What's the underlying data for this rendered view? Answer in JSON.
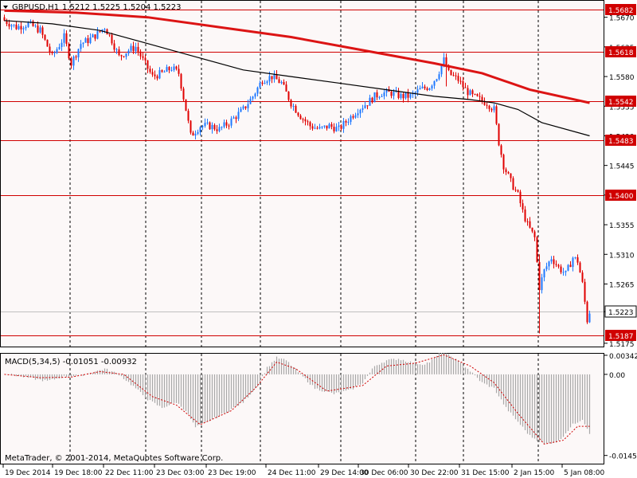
{
  "header": {
    "symbol_label": "GBPUSD,H1",
    "ohlc_label": "1.5212 1.5225 1.5204 1.5223"
  },
  "indicator": {
    "label": "MACD(5,34,5) -0.01051 -0.00932"
  },
  "footer": {
    "copyright": "MetaTrader, © 2001-2014, MetaQuotes Software Corp."
  },
  "colors": {
    "background": "#fcf8f8",
    "bull_candle": "#1e78ff",
    "bear_candle": "#e00000",
    "level_line": "#d00000",
    "slow_ma": "#dc1414",
    "fast_ma": "#000000",
    "macd_hist": "#a8a8a8",
    "macd_signal": "#d00000",
    "current_price_line": "#c0c0c0"
  },
  "chart_data": [
    {
      "type": "candlestick",
      "title": "GBPUSD,H1",
      "ylim": [
        1.517,
        1.5695
      ],
      "price_ticks": [
        "1.5670",
        "1.5625",
        "1.5580",
        "1.5535",
        "1.5490",
        "1.5445",
        "1.5400",
        "1.5355",
        "1.5310",
        "1.5265",
        "1.5223",
        "1.5175"
      ],
      "time_labels": [
        "19 Dec 2014",
        "19 Dec 18:00",
        "22 Dec 11:00",
        "23 Dec 03:00",
        "23 Dec 19:00",
        "24 Dec 11:00",
        "29 Dec 14:00",
        "30 Dec 06:00",
        "30 Dec 22:00",
        "31 Dec 15:00",
        "2 Jan 15:00",
        "5 Jan 08:00"
      ],
      "levels": [
        {
          "label": "1.5682",
          "value": 1.5682
        },
        {
          "label": "1.5618",
          "value": 1.5618
        },
        {
          "label": "1.5542",
          "value": 1.5542
        },
        {
          "label": "1.5483",
          "value": 1.5483
        },
        {
          "label": "1.5400",
          "value": 1.54
        },
        {
          "label": "1.5187",
          "value": 1.5187
        }
      ],
      "current_price": {
        "label": "1.5223",
        "value": 1.5223
      },
      "close_path": [
        [
          0,
          1.5665
        ],
        [
          5,
          1.5655
        ],
        [
          10,
          1.566
        ],
        [
          15,
          1.565
        ],
        [
          20,
          1.561
        ],
        [
          25,
          1.564
        ],
        [
          28,
          1.56
        ],
        [
          32,
          1.563
        ],
        [
          35,
          1.5635
        ],
        [
          39,
          1.5645
        ],
        [
          42,
          1.5655
        ],
        [
          45,
          1.5635
        ],
        [
          48,
          1.561
        ],
        [
          52,
          1.562
        ],
        [
          55,
          1.5625
        ],
        [
          58,
          1.5605
        ],
        [
          62,
          1.558
        ],
        [
          66,
          1.5585
        ],
        [
          70,
          1.5593
        ],
        [
          73,
          1.5585
        ],
        [
          76,
          1.553
        ],
        [
          78,
          1.549
        ],
        [
          82,
          1.5505
        ],
        [
          86,
          1.5505
        ],
        [
          90,
          1.55
        ],
        [
          94,
          1.551
        ],
        [
          97,
          1.552
        ],
        [
          100,
          1.553
        ],
        [
          104,
          1.555
        ],
        [
          108,
          1.5575
        ],
        [
          112,
          1.558
        ],
        [
          116,
          1.557
        ],
        [
          120,
          1.554
        ],
        [
          124,
          1.552
        ],
        [
          128,
          1.5505
        ],
        [
          132,
          1.55
        ],
        [
          136,
          1.5505
        ],
        [
          140,
          1.55
        ],
        [
          144,
          1.5515
        ],
        [
          148,
          1.553
        ],
        [
          152,
          1.554
        ],
        [
          155,
          1.555
        ],
        [
          158,
          1.5555
        ],
        [
          162,
          1.5555
        ],
        [
          166,
          1.555
        ],
        [
          170,
          1.555
        ],
        [
          174,
          1.556
        ],
        [
          178,
          1.5565
        ],
        [
          181,
          1.558
        ],
        [
          184,
          1.5605
        ],
        [
          186,
          1.5585
        ],
        [
          190,
          1.5575
        ],
        [
          193,
          1.556
        ],
        [
          196,
          1.555
        ],
        [
          199,
          1.5545
        ],
        [
          202,
          1.554
        ],
        [
          205,
          1.553
        ],
        [
          207,
          1.548
        ],
        [
          209,
          1.5445
        ],
        [
          212,
          1.542
        ],
        [
          215,
          1.54
        ],
        [
          217,
          1.5375
        ],
        [
          219,
          1.5355
        ],
        [
          222,
          1.5335
        ],
        [
          224,
          1.526
        ],
        [
          226,
          1.5285
        ],
        [
          229,
          1.5305
        ],
        [
          232,
          1.529
        ],
        [
          235,
          1.528
        ],
        [
          238,
          1.5305
        ],
        [
          240,
          1.53
        ],
        [
          242,
          1.5265
        ],
        [
          244,
          1.521
        ],
        [
          245,
          1.5223
        ]
      ],
      "big_spikes": [
        {
          "bar": 224,
          "low": 1.519,
          "high": 1.531
        },
        {
          "bar": 185,
          "low": 1.5565,
          "high": 1.5615
        }
      ],
      "ma_slow": [
        [
          0,
          1.568
        ],
        [
          30,
          1.5677
        ],
        [
          60,
          1.567
        ],
        [
          90,
          1.5655
        ],
        [
          120,
          1.564
        ],
        [
          150,
          1.562
        ],
        [
          180,
          1.56
        ],
        [
          200,
          1.5585
        ],
        [
          220,
          1.556
        ],
        [
          245,
          1.554
        ]
      ],
      "ma_fast": [
        [
          0,
          1.5665
        ],
        [
          20,
          1.566
        ],
        [
          40,
          1.565
        ],
        [
          60,
          1.563
        ],
        [
          80,
          1.561
        ],
        [
          100,
          1.559
        ],
        [
          120,
          1.558
        ],
        [
          140,
          1.557
        ],
        [
          160,
          1.556
        ],
        [
          180,
          1.555
        ],
        [
          195,
          1.5545
        ],
        [
          205,
          1.554
        ],
        [
          215,
          1.553
        ],
        [
          225,
          1.551
        ],
        [
          245,
          1.549
        ]
      ]
    },
    {
      "type": "bar",
      "title": "MACD(5,34,5)",
      "ylim": [
        -0.016,
        0.0037
      ],
      "ticks": [
        "0.00342",
        "0.00",
        "-0.01453"
      ],
      "macd_path": [
        [
          0,
          0.0002
        ],
        [
          10,
          -0.0006
        ],
        [
          18,
          -0.0012
        ],
        [
          25,
          -0.0004
        ],
        [
          32,
          -0.0002
        ],
        [
          38,
          0.0005
        ],
        [
          42,
          0.001
        ],
        [
          48,
          0.0
        ],
        [
          55,
          -0.0025
        ],
        [
          60,
          -0.0045
        ],
        [
          66,
          -0.006
        ],
        [
          72,
          -0.005
        ],
        [
          76,
          -0.0065
        ],
        [
          80,
          -0.0095
        ],
        [
          85,
          -0.0085
        ],
        [
          92,
          -0.007
        ],
        [
          100,
          -0.005
        ],
        [
          106,
          -0.002
        ],
        [
          110,
          0.0012
        ],
        [
          114,
          0.003
        ],
        [
          118,
          0.0025
        ],
        [
          124,
          0.0
        ],
        [
          130,
          -0.0025
        ],
        [
          138,
          -0.0035
        ],
        [
          145,
          -0.0028
        ],
        [
          150,
          -0.0015
        ],
        [
          155,
          0.0015
        ],
        [
          160,
          0.0025
        ],
        [
          165,
          0.0028
        ],
        [
          170,
          0.0022
        ],
        [
          175,
          0.0018
        ],
        [
          178,
          0.0022
        ],
        [
          183,
          0.004
        ],
        [
          188,
          0.003
        ],
        [
          194,
          0.001
        ],
        [
          200,
          -0.0015
        ],
        [
          205,
          -0.0025
        ],
        [
          210,
          -0.006
        ],
        [
          214,
          -0.008
        ],
        [
          220,
          -0.011
        ],
        [
          226,
          -0.0125
        ],
        [
          232,
          -0.012
        ],
        [
          238,
          -0.009
        ],
        [
          242,
          -0.008
        ],
        [
          245,
          -0.0105
        ]
      ],
      "signal_path": [
        [
          0,
          0.0
        ],
        [
          15,
          -0.0006
        ],
        [
          28,
          -0.0005
        ],
        [
          40,
          0.0005
        ],
        [
          50,
          0.0
        ],
        [
          62,
          -0.004
        ],
        [
          72,
          -0.0055
        ],
        [
          82,
          -0.009
        ],
        [
          95,
          -0.0065
        ],
        [
          105,
          -0.0025
        ],
        [
          114,
          0.0022
        ],
        [
          122,
          0.001
        ],
        [
          135,
          -0.003
        ],
        [
          150,
          -0.002
        ],
        [
          160,
          0.0015
        ],
        [
          172,
          0.002
        ],
        [
          184,
          0.0035
        ],
        [
          195,
          0.0015
        ],
        [
          205,
          -0.0015
        ],
        [
          215,
          -0.007
        ],
        [
          226,
          -0.0125
        ],
        [
          234,
          -0.0118
        ],
        [
          240,
          -0.0093
        ],
        [
          245,
          -0.0093
        ]
      ]
    }
  ]
}
